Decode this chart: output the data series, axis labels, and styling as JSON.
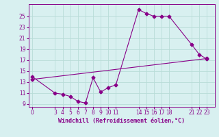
{
  "xlabel": "Windchill (Refroidissement éolien,°C)",
  "bg_color": "#d8f0f0",
  "grid_color": "#b8dcd8",
  "line_color": "#880088",
  "line1_x": [
    0,
    3,
    4,
    5,
    6,
    7,
    8,
    9,
    10,
    11,
    14,
    15,
    16,
    17,
    18,
    21,
    22,
    23
  ],
  "line1_y": [
    14.0,
    11.0,
    10.8,
    10.4,
    9.5,
    9.2,
    13.8,
    11.2,
    12.0,
    12.5,
    26.2,
    25.5,
    25.0,
    25.0,
    25.0,
    19.8,
    18.0,
    17.2
  ],
  "line2_x": [
    0,
    23
  ],
  "line2_y": [
    13.5,
    17.3
  ],
  "xlim": [
    -0.5,
    24
  ],
  "ylim": [
    8.5,
    27.2
  ],
  "xticks": [
    0,
    3,
    4,
    5,
    6,
    7,
    8,
    9,
    10,
    11,
    14,
    15,
    16,
    17,
    18,
    21,
    22,
    23
  ],
  "yticks": [
    9,
    11,
    13,
    15,
    17,
    19,
    21,
    23,
    25
  ],
  "marker": "D",
  "markersize": 2.5,
  "linewidth": 0.8,
  "tick_fontsize": 5.5,
  "xlabel_fontsize": 6.0
}
